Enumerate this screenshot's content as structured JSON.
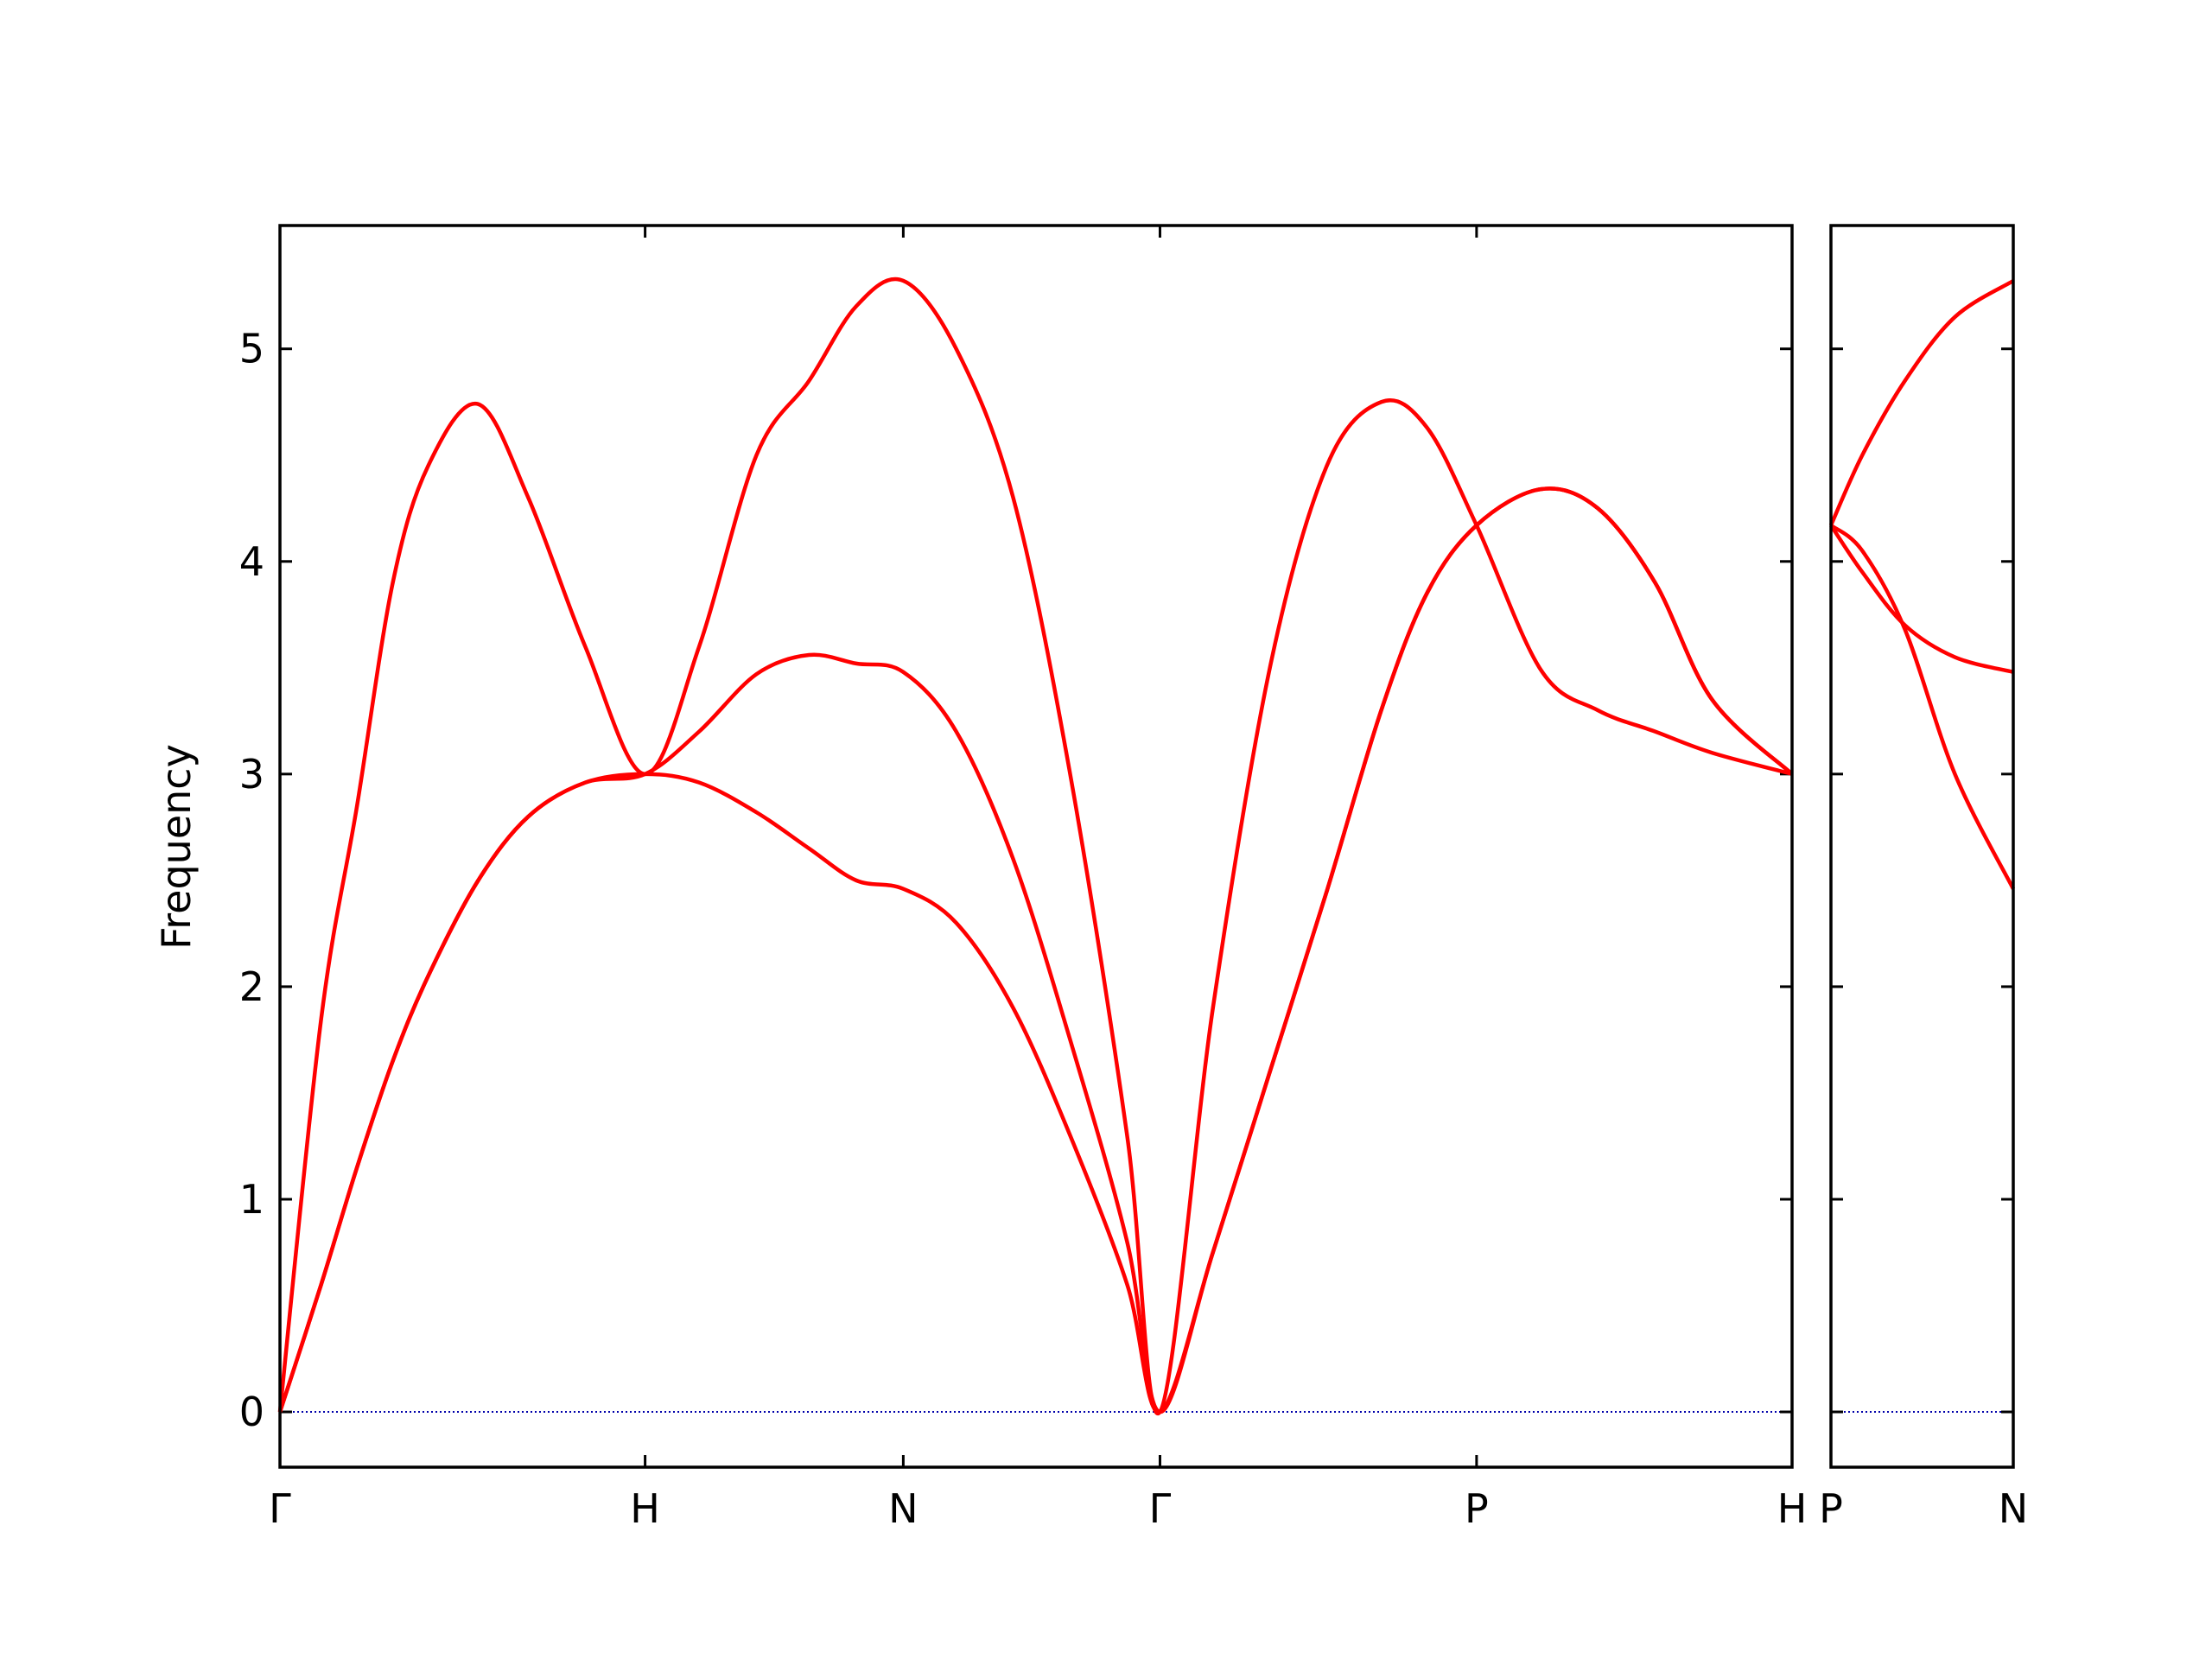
{
  "chart_data": [
    {
      "type": "line",
      "ylabel": "Frequency",
      "x": [
        0,
        0.113,
        0.211,
        0.309,
        0.406,
        0.543,
        0.68,
        0.836,
        1.0,
        1.148,
        1.305,
        1.449,
        1.578,
        1.707,
        1.852,
        2.008,
        2.164,
        2.32,
        2.41,
        2.555,
        2.711,
        2.867,
        3.016,
        3.141,
        3.277,
        3.453,
        3.609,
        3.766,
        3.922,
        4.141
      ],
      "series": [
        {
          "color": "#ff0000",
          "values": [
            0,
            0.6,
            1.15,
            1.65,
            2.05,
            2.5,
            2.8,
            2.96,
            3.0,
            2.96,
            2.82,
            2.65,
            2.5,
            2.46,
            2.3,
            1.9,
            1.3,
            0.6,
            0,
            0.75,
            1.6,
            2.45,
            3.3,
            3.85,
            4.17,
            4.34,
            4.25,
            3.9,
            3.35,
            3.0
          ]
        },
        {
          "color": "#ff0000",
          "values": [
            0,
            0.6,
            1.15,
            1.65,
            2.05,
            2.5,
            2.8,
            2.96,
            3.0,
            3.2,
            3.47,
            3.56,
            3.52,
            3.48,
            3.2,
            2.6,
            1.75,
            0.8,
            0,
            0.75,
            1.6,
            2.45,
            3.3,
            3.85,
            4.17,
            4.34,
            4.25,
            3.9,
            3.35,
            3.0
          ]
        },
        {
          "color": "#ff0000",
          "values": [
            0,
            1.85,
            2.85,
            3.9,
            4.45,
            4.74,
            4.3,
            3.6,
            3.0,
            3.6,
            4.5,
            4.85,
            5.2,
            5.32,
            5.0,
            4.3,
            3.0,
            1.3,
            0,
            1.9,
            3.5,
            4.45,
            4.75,
            4.63,
            4.17,
            3.49,
            3.3,
            3.2,
            3.1,
            3.0
          ]
        }
      ],
      "xlim": [
        0,
        4.141
      ],
      "xticks": [
        {
          "value": 0,
          "label": "Γ"
        },
        {
          "value": 1.0,
          "label": "H"
        },
        {
          "value": 1.707,
          "label": "N"
        },
        {
          "value": 2.41,
          "label": "Γ"
        },
        {
          "value": 3.277,
          "label": "P"
        },
        {
          "value": 4.141,
          "label": "H"
        }
      ],
      "ylim": [
        -0.26,
        5.58
      ],
      "yticks": [
        0,
        1,
        2,
        3,
        4,
        5
      ],
      "ytick_labels": true,
      "zero_line": {
        "value": 0,
        "color": "#0000aa"
      }
    },
    {
      "type": "line",
      "x": [
        0,
        0.086,
        0.203,
        0.34,
        0.5
      ],
      "series": [
        {
          "color": "#ff0000",
          "values": [
            4.17,
            4.05,
            3.68,
            3.0,
            2.46
          ]
        },
        {
          "color": "#ff0000",
          "values": [
            4.17,
            3.95,
            3.7,
            3.55,
            3.48
          ]
        },
        {
          "color": "#ff0000",
          "values": [
            4.17,
            4.5,
            4.85,
            5.15,
            5.32
          ]
        }
      ],
      "xlim": [
        0,
        0.5
      ],
      "xticks": [
        {
          "value": 0,
          "label": "P"
        },
        {
          "value": 0.5,
          "label": "N"
        }
      ],
      "ylim": [
        -0.26,
        5.58
      ],
      "yticks": [
        0,
        1,
        2,
        3,
        4,
        5
      ],
      "ytick_labels": false,
      "zero_line": {
        "value": 0,
        "color": "#0000aa"
      }
    }
  ]
}
